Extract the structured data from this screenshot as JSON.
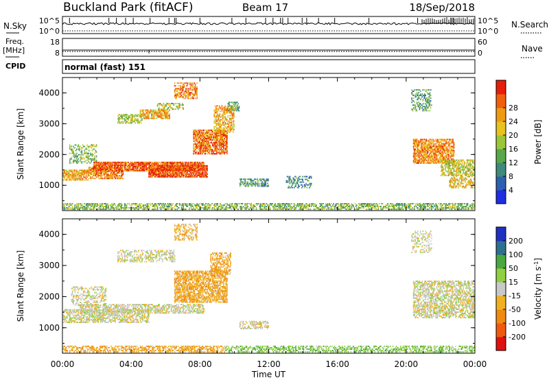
{
  "header": {
    "site": "Buckland Park (fitACF)",
    "beam": "Beam 17",
    "date": "18/Sep/2018"
  },
  "left_labels": {
    "nsky": "N.Sky",
    "freq": "Freq.",
    "freq_unit": "[MHz]",
    "cpid": "CPID"
  },
  "right_labels": {
    "nsearch": "N.Search",
    "nave": "Nave"
  },
  "nsky_axis": {
    "top": "10^5",
    "bottom": "10^0"
  },
  "freq_axis": {
    "top": "18",
    "bottom": "8"
  },
  "nsearch_axis": {
    "top": "10^5",
    "bottom": "10^0"
  },
  "nave_axis": {
    "top": "60",
    "bottom": "0"
  },
  "cpid_text": "normal (fast) 151",
  "chart_data": [
    {
      "type": "heatmap",
      "panel": "power",
      "ylabel": "Slant Range [km]",
      "y_ticks": [
        "1000",
        "2000",
        "3000",
        "4000"
      ],
      "y_tick_values": [
        1000,
        2000,
        3000,
        4000
      ],
      "ylim": [
        180,
        4500
      ],
      "xlim": [
        0,
        24
      ],
      "colorbar_label": "Power [dB]",
      "colorbar_ticks": [
        "4",
        "8",
        "12",
        "16",
        "20",
        "24",
        "28"
      ],
      "colorbar_range": [
        0,
        32
      ],
      "colorbar_colors": [
        "#1f2ee0",
        "#2f5fb0",
        "#3f8a7a",
        "#58a84a",
        "#9cc63a",
        "#e8c21e",
        "#f09a12",
        "#f0600c",
        "#e61e0a"
      ],
      "regions": [
        {
          "t0": 0.0,
          "t1": 24.0,
          "r0": 200,
          "r1": 420,
          "dB": 14,
          "density": 0.55
        },
        {
          "t0": 0.0,
          "t1": 1.5,
          "r0": 1150,
          "r1": 1500,
          "dB": 22,
          "density": 0.75
        },
        {
          "t0": 0.4,
          "t1": 2.0,
          "r0": 1700,
          "r1": 2300,
          "dB": 14,
          "density": 0.45
        },
        {
          "t0": 1.5,
          "t1": 3.5,
          "r0": 1200,
          "r1": 1600,
          "dB": 24,
          "density": 0.7
        },
        {
          "t0": 1.8,
          "t1": 8.2,
          "r0": 1450,
          "r1": 1750,
          "dB": 27,
          "density": 0.85
        },
        {
          "t0": 5.0,
          "t1": 8.4,
          "r0": 1250,
          "r1": 1650,
          "dB": 28,
          "density": 0.85
        },
        {
          "t0": 3.2,
          "t1": 4.6,
          "r0": 3000,
          "r1": 3300,
          "dB": 16,
          "density": 0.55
        },
        {
          "t0": 4.5,
          "t1": 6.2,
          "r0": 3150,
          "r1": 3450,
          "dB": 22,
          "density": 0.7
        },
        {
          "t0": 5.5,
          "t1": 7.0,
          "r0": 3450,
          "r1": 3650,
          "dB": 16,
          "density": 0.5
        },
        {
          "t0": 6.5,
          "t1": 7.8,
          "r0": 3800,
          "r1": 4300,
          "dB": 24,
          "density": 0.55
        },
        {
          "t0": 7.6,
          "t1": 9.6,
          "r0": 2000,
          "r1": 2800,
          "dB": 26,
          "density": 0.75
        },
        {
          "t0": 8.8,
          "t1": 10.0,
          "r0": 2700,
          "r1": 3600,
          "dB": 22,
          "density": 0.55
        },
        {
          "t0": 9.6,
          "t1": 10.3,
          "r0": 3400,
          "r1": 3700,
          "dB": 12,
          "density": 0.4
        },
        {
          "t0": 10.3,
          "t1": 12.0,
          "r0": 950,
          "r1": 1200,
          "dB": 10,
          "density": 0.55
        },
        {
          "t0": 13.0,
          "t1": 14.5,
          "r0": 900,
          "r1": 1300,
          "dB": 9,
          "density": 0.35
        },
        {
          "t0": 20.3,
          "t1": 21.5,
          "r0": 3400,
          "r1": 4100,
          "dB": 11,
          "density": 0.35
        },
        {
          "t0": 20.4,
          "t1": 22.8,
          "r0": 1700,
          "r1": 2500,
          "dB": 24,
          "density": 0.7
        },
        {
          "t0": 22.0,
          "t1": 24.0,
          "r0": 1300,
          "r1": 1800,
          "dB": 18,
          "density": 0.65
        },
        {
          "t0": 22.5,
          "t1": 24.0,
          "r0": 900,
          "r1": 1300,
          "dB": 20,
          "density": 0.45
        }
      ]
    },
    {
      "type": "heatmap",
      "panel": "velocity",
      "ylabel": "Slant Range [km]",
      "y_ticks": [
        "1000",
        "2000",
        "3000",
        "4000"
      ],
      "y_tick_values": [
        1000,
        2000,
        3000,
        4000
      ],
      "ylim": [
        180,
        4500
      ],
      "xlim": [
        0,
        24
      ],
      "xlabel": "Time UT",
      "x_ticks": [
        "00:00",
        "04:00",
        "08:00",
        "12:00",
        "16:00",
        "20:00",
        "00:00"
      ],
      "x_tick_values": [
        0,
        4,
        8,
        12,
        16,
        20,
        24
      ],
      "colorbar_label": "Velocity [m s^-1]",
      "colorbar_ticks": [
        "-200",
        "-100",
        "-50",
        "-15",
        "15",
        "50",
        "100",
        "200"
      ],
      "colorbar_colors": [
        "#e01010",
        "#f05a10",
        "#f08a10",
        "#f0b020",
        "#c8c8c8",
        "#8ed040",
        "#4aa840",
        "#2f6f90",
        "#2030c0"
      ],
      "regions": [
        {
          "t0": 0.0,
          "t1": 9.5,
          "r0": 200,
          "r1": 400,
          "v": -40,
          "density": 0.55
        },
        {
          "t0": 9.5,
          "t1": 24.0,
          "r0": 200,
          "r1": 420,
          "v": 40,
          "density": 0.5
        },
        {
          "t0": 0.0,
          "t1": 5.0,
          "r0": 1150,
          "r1": 1600,
          "v": 0,
          "density": 0.6
        },
        {
          "t0": 1.0,
          "t1": 8.2,
          "r0": 1450,
          "r1": 1750,
          "v": 0,
          "density": 0.6
        },
        {
          "t0": 0.5,
          "t1": 2.5,
          "r0": 1700,
          "r1": 2300,
          "v": 0,
          "density": 0.35
        },
        {
          "t0": 6.5,
          "t1": 9.6,
          "r0": 1800,
          "r1": 2800,
          "v": -40,
          "density": 0.7
        },
        {
          "t0": 8.6,
          "t1": 9.8,
          "r0": 2700,
          "r1": 3400,
          "v": -40,
          "density": 0.55
        },
        {
          "t0": 3.2,
          "t1": 6.5,
          "r0": 3100,
          "r1": 3500,
          "v": 0,
          "density": 0.45
        },
        {
          "t0": 6.5,
          "t1": 7.8,
          "r0": 3800,
          "r1": 4300,
          "v": -30,
          "density": 0.45
        },
        {
          "t0": 10.3,
          "t1": 12.0,
          "r0": 950,
          "r1": 1200,
          "v": -10,
          "density": 0.5
        },
        {
          "t0": 20.3,
          "t1": 21.5,
          "r0": 3400,
          "r1": 4100,
          "v": 0,
          "density": 0.3
        },
        {
          "t0": 20.4,
          "t1": 24.0,
          "r0": 1300,
          "r1": 2500,
          "v": 0,
          "density": 0.6
        }
      ]
    }
  ]
}
